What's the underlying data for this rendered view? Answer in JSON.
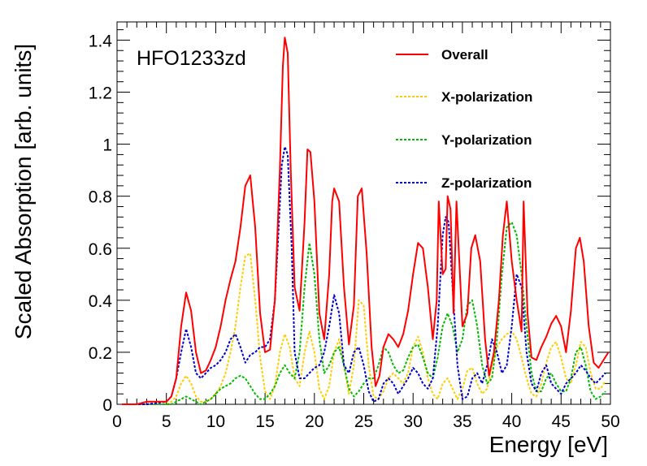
{
  "chart_data": {
    "type": "line",
    "title": "",
    "annotation": "HFO1233zd",
    "xlabel": "Energy [eV]",
    "ylabel": "Scaled Absorption [arb. units]",
    "xlim": [
      0,
      50
    ],
    "ylim": [
      0,
      1.47
    ],
    "xticks": [
      0,
      5,
      10,
      15,
      20,
      25,
      30,
      35,
      40,
      45,
      50
    ],
    "xtick_labels": [
      "0",
      "5",
      "10",
      "15",
      "20",
      "25",
      "30",
      "35",
      "40",
      "45",
      "50"
    ],
    "yticks": [
      0,
      0.2,
      0.4,
      0.6,
      0.8,
      1,
      1.2,
      1.4
    ],
    "ytick_labels": [
      "0",
      "0.2",
      "0.4",
      "0.6",
      "0.8",
      "1",
      "1.2",
      "1.4"
    ],
    "grid": false,
    "legend_position": "top-right",
    "series": [
      {
        "name": "Overall",
        "color": "#ff0000",
        "dash": "solid",
        "x": [
          0.5,
          2,
          3,
          4,
          5,
          5.5,
          6,
          6.5,
          7,
          7.5,
          8,
          8.5,
          9,
          9.5,
          10,
          10.5,
          11,
          11.5,
          12,
          12.5,
          13,
          13.5,
          14,
          14.5,
          15,
          15.5,
          16,
          16.5,
          16.8,
          17,
          17.3,
          17.6,
          18,
          18.5,
          19,
          19.3,
          19.6,
          20,
          20.5,
          21,
          21.5,
          21.8,
          22,
          22.5,
          23,
          23.5,
          24,
          24.4,
          24.8,
          25.3,
          25.8,
          26.2,
          26.6,
          27,
          27.5,
          28,
          28.5,
          29,
          29.5,
          30,
          30.5,
          31,
          31.5,
          32,
          32.4,
          32.6,
          33,
          33.3,
          33.5,
          33.8,
          34.1,
          34.4,
          35,
          35.5,
          35.9,
          36.3,
          36.8,
          37.3,
          37.7,
          38.2,
          38.7,
          39.1,
          39.5,
          40,
          40.5,
          41,
          41.2,
          41.6,
          42,
          42.5,
          43,
          43.5,
          44,
          44.5,
          45,
          45.5,
          46,
          46.5,
          46.9,
          47.3,
          47.8,
          48.3,
          48.8,
          49.3,
          49.8
        ],
        "y": [
          0,
          0,
          0.01,
          0.01,
          0.01,
          0.03,
          0.1,
          0.3,
          0.43,
          0.36,
          0.2,
          0.12,
          0.13,
          0.17,
          0.22,
          0.3,
          0.4,
          0.48,
          0.55,
          0.68,
          0.84,
          0.88,
          0.68,
          0.35,
          0.2,
          0.21,
          0.4,
          0.9,
          1.3,
          1.41,
          1.35,
          0.9,
          0.45,
          0.36,
          0.7,
          0.98,
          0.97,
          0.78,
          0.35,
          0.25,
          0.5,
          0.78,
          0.83,
          0.78,
          0.45,
          0.23,
          0.38,
          0.8,
          0.83,
          0.58,
          0.22,
          0.07,
          0.11,
          0.22,
          0.27,
          0.25,
          0.22,
          0.27,
          0.36,
          0.5,
          0.62,
          0.6,
          0.45,
          0.25,
          0.4,
          0.78,
          0.5,
          0.52,
          0.8,
          0.75,
          0.35,
          0.78,
          0.3,
          0.35,
          0.6,
          0.65,
          0.55,
          0.25,
          0.11,
          0.2,
          0.4,
          0.65,
          0.78,
          0.55,
          0.4,
          0.28,
          0.78,
          0.35,
          0.18,
          0.17,
          0.22,
          0.26,
          0.31,
          0.34,
          0.3,
          0.2,
          0.36,
          0.6,
          0.64,
          0.55,
          0.3,
          0.16,
          0.14,
          0.17,
          0.2
        ]
      },
      {
        "name": "X-polarization",
        "color": "#ffcc00",
        "dash": "dotted",
        "x": [
          0.5,
          3,
          5,
          5.5,
          6,
          6.5,
          7,
          7.5,
          8,
          8.5,
          9,
          9.5,
          10,
          10.5,
          11,
          11.5,
          12,
          12.5,
          13,
          13.5,
          14,
          14.5,
          15,
          15.5,
          16,
          16.5,
          17,
          17.5,
          18,
          18.5,
          19,
          19.5,
          20,
          20.5,
          21,
          21.5,
          22,
          22.5,
          23,
          23.5,
          24,
          24.5,
          25,
          25.5,
          26,
          26.5,
          27,
          27.5,
          28,
          28.5,
          29,
          29.5,
          30,
          30.5,
          31,
          31.5,
          32,
          32.5,
          33,
          33.5,
          34,
          34.5,
          35,
          35.5,
          36,
          36.5,
          37,
          37.5,
          38,
          38.5,
          39,
          39.5,
          40,
          40.5,
          41,
          41.5,
          42,
          42.5,
          43,
          43.5,
          44,
          44.5,
          45,
          45.5,
          46,
          46.5,
          47,
          47.5,
          48,
          48.5,
          49,
          49.5
        ],
        "y": [
          0,
          0,
          0,
          0.01,
          0.03,
          0.08,
          0.11,
          0.08,
          0.03,
          0.01,
          0.01,
          0.02,
          0.04,
          0.07,
          0.12,
          0.2,
          0.3,
          0.45,
          0.57,
          0.58,
          0.4,
          0.18,
          0.05,
          0.02,
          0.07,
          0.2,
          0.27,
          0.22,
          0.1,
          0.07,
          0.2,
          0.28,
          0.2,
          0.06,
          0.02,
          0.07,
          0.2,
          0.25,
          0.15,
          0.04,
          0.15,
          0.4,
          0.38,
          0.15,
          0.03,
          0.02,
          0.05,
          0.1,
          0.12,
          0.1,
          0.08,
          0.12,
          0.22,
          0.26,
          0.2,
          0.1,
          0.04,
          0.02,
          0.08,
          0.1,
          0.06,
          0.02,
          0.06,
          0.13,
          0.14,
          0.08,
          0.04,
          0.06,
          0.15,
          0.22,
          0.25,
          0.27,
          0.28,
          0.25,
          0.18,
          0.1,
          0.04,
          0.03,
          0.08,
          0.16,
          0.22,
          0.24,
          0.18,
          0.1,
          0.08,
          0.15,
          0.24,
          0.22,
          0.12,
          0.06,
          0.06,
          0.09
        ]
      },
      {
        "name": "Y-polarization",
        "color": "#00bb00",
        "dash": "dotted",
        "x": [
          0.5,
          3,
          5,
          5.5,
          6,
          6.5,
          7,
          7.5,
          8,
          8.5,
          9,
          9.5,
          10,
          10.5,
          11,
          11.5,
          12,
          12.5,
          13,
          13.5,
          14,
          14.5,
          15,
          15.5,
          16,
          16.5,
          17,
          17.5,
          18,
          18.5,
          19,
          19.5,
          20,
          20.5,
          21,
          21.5,
          22,
          22.5,
          23,
          23.5,
          24,
          24.5,
          25,
          25.5,
          26,
          26.5,
          27,
          27.5,
          28,
          28.5,
          29,
          29.5,
          30,
          30.5,
          31,
          31.5,
          32,
          32.5,
          33,
          33.5,
          34,
          34.5,
          35,
          35.5,
          36,
          36.5,
          37,
          37.5,
          38,
          38.5,
          39,
          39.5,
          40,
          40.5,
          41,
          41.5,
          42,
          42.5,
          43,
          43.5,
          44,
          44.5,
          45,
          45.5,
          46,
          46.5,
          47,
          47.5,
          48,
          48.5,
          49,
          49.5
        ],
        "y": [
          0,
          0,
          0,
          0,
          0.01,
          0.02,
          0.03,
          0.02,
          0.01,
          0,
          0.01,
          0.02,
          0.04,
          0.06,
          0.07,
          0.08,
          0.1,
          0.11,
          0.1,
          0.07,
          0.04,
          0.02,
          0.02,
          0.04,
          0.07,
          0.12,
          0.15,
          0.12,
          0.1,
          0.2,
          0.45,
          0.62,
          0.5,
          0.25,
          0.12,
          0.15,
          0.2,
          0.22,
          0.15,
          0.06,
          0.03,
          0.05,
          0.08,
          0.1,
          0.1,
          0.15,
          0.22,
          0.2,
          0.15,
          0.12,
          0.13,
          0.18,
          0.22,
          0.23,
          0.18,
          0.12,
          0.1,
          0.18,
          0.3,
          0.35,
          0.3,
          0.2,
          0.25,
          0.38,
          0.4,
          0.3,
          0.15,
          0.08,
          0.1,
          0.25,
          0.5,
          0.68,
          0.7,
          0.65,
          0.5,
          0.3,
          0.12,
          0.05,
          0.05,
          0.1,
          0.12,
          0.08,
          0.05,
          0.05,
          0.1,
          0.2,
          0.22,
          0.15,
          0.05,
          0.02,
          0.03,
          0.05
        ]
      },
      {
        "name": "Z-polarization",
        "color": "#0000cc",
        "dash": "dotted",
        "x": [
          0.5,
          3,
          5,
          5.5,
          6,
          6.5,
          7,
          7.5,
          8,
          8.5,
          9,
          9.5,
          10,
          10.5,
          11,
          11.5,
          12,
          12.5,
          13,
          13.5,
          14,
          14.5,
          15,
          15.5,
          16,
          16.3,
          16.7,
          17,
          17.3,
          17.7,
          18,
          18.5,
          19,
          19.5,
          20,
          20.5,
          21,
          21.5,
          22,
          22.5,
          23,
          23.5,
          24,
          24.5,
          25,
          25.5,
          26,
          26.5,
          27,
          27.5,
          28,
          28.5,
          29,
          29.5,
          30,
          30.5,
          31,
          31.5,
          32,
          32.5,
          33,
          33.3,
          33.6,
          34,
          34.5,
          35,
          35.5,
          36,
          36.5,
          37,
          37.5,
          38,
          38.5,
          39,
          39.5,
          40,
          40.5,
          41,
          41.5,
          42,
          42.5,
          43,
          43.5,
          44,
          44.5,
          45,
          45.5,
          46,
          46.5,
          47,
          47.5,
          48,
          48.5,
          49,
          49.5
        ],
        "y": [
          0,
          0,
          0.01,
          0.03,
          0.1,
          0.2,
          0.29,
          0.22,
          0.12,
          0.1,
          0.12,
          0.14,
          0.15,
          0.17,
          0.2,
          0.25,
          0.27,
          0.22,
          0.16,
          0.19,
          0.2,
          0.22,
          0.22,
          0.25,
          0.4,
          0.62,
          0.92,
          0.99,
          0.96,
          0.6,
          0.2,
          0.1,
          0.1,
          0.12,
          0.14,
          0.15,
          0.2,
          0.3,
          0.42,
          0.35,
          0.15,
          0.12,
          0.2,
          0.22,
          0.15,
          0.05,
          0.01,
          0.02,
          0.08,
          0.1,
          0.08,
          0.04,
          0.07,
          0.1,
          0.14,
          0.12,
          0.08,
          0.06,
          0.1,
          0.3,
          0.65,
          0.72,
          0.7,
          0.45,
          0.15,
          0.02,
          0.03,
          0.1,
          0.12,
          0.08,
          0.15,
          0.25,
          0.2,
          0.12,
          0.15,
          0.3,
          0.5,
          0.45,
          0.2,
          0.08,
          0.05,
          0.12,
          0.15,
          0.08,
          0.06,
          0.04,
          0.08,
          0.1,
          0.12,
          0.15,
          0.13,
          0.1,
          0.08,
          0.1,
          0.12
        ]
      }
    ]
  }
}
